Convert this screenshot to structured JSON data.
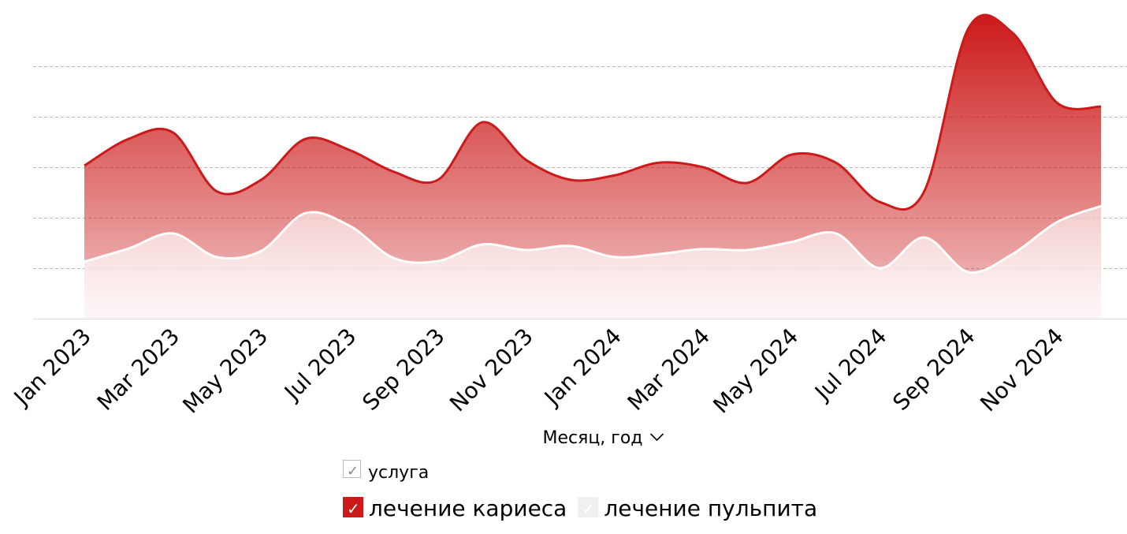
{
  "chart_data": {
    "type": "area",
    "stacked": false,
    "categories": [
      "Jan 2023",
      null,
      "Mar 2023",
      null,
      "May 2023",
      null,
      "Jul 2023",
      null,
      "Sep 2023",
      null,
      "Nov 2023",
      null,
      "Jan 2024",
      null,
      "Mar 2024",
      null,
      "May 2024",
      null,
      "Jul 2024",
      null,
      "Sep 2024",
      null,
      "Nov 2024",
      null
    ],
    "series": [
      {
        "name": "лечение кариеса",
        "color": "#cc1a1a",
        "values": [
          3.03,
          3.56,
          3.69,
          2.52,
          2.75,
          3.56,
          3.34,
          2.91,
          2.75,
          3.89,
          3.14,
          2.75,
          2.84,
          3.09,
          3.0,
          2.69,
          3.25,
          3.09,
          2.31,
          2.52,
          5.75,
          5.66,
          4.28,
          4.2
        ]
      },
      {
        "name": "лечение пульпита",
        "color": "#ffffff",
        "values": [
          1.13,
          1.39,
          1.69,
          1.22,
          1.34,
          2.09,
          1.84,
          1.2,
          1.14,
          1.47,
          1.36,
          1.44,
          1.22,
          1.28,
          1.38,
          1.36,
          1.52,
          1.69,
          1.0,
          1.61,
          0.92,
          1.28,
          1.91,
          2.23
        ]
      }
    ],
    "ylim": [
      0,
      6
    ],
    "yticks": [
      1,
      2,
      3,
      4,
      5
    ],
    "grid": true,
    "x_label": "Месяц, год",
    "legend_title": "услуга",
    "legend_position": "bottom"
  }
}
